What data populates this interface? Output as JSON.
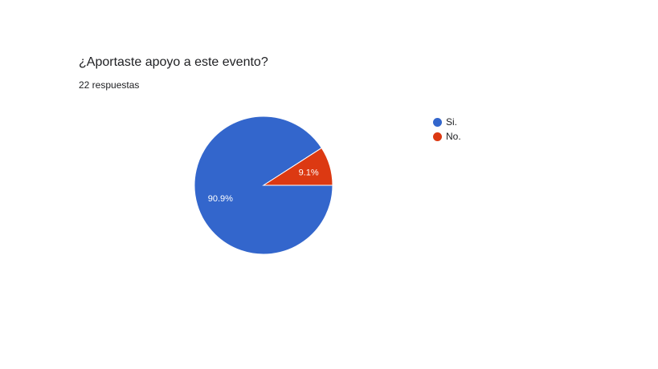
{
  "question": {
    "title": "¿Aportaste apoyo a este evento?",
    "responses": "22 respuestas"
  },
  "chart_data": {
    "type": "pie",
    "title": "¿Aportaste apoyo a este evento?",
    "slices": [
      {
        "label": "Si.",
        "value": 90.9,
        "display": "90.9%",
        "color": "#3366cc"
      },
      {
        "label": "No.",
        "value": 9.1,
        "display": "9.1%",
        "color": "#dc3912"
      }
    ],
    "legend_position": "right"
  }
}
